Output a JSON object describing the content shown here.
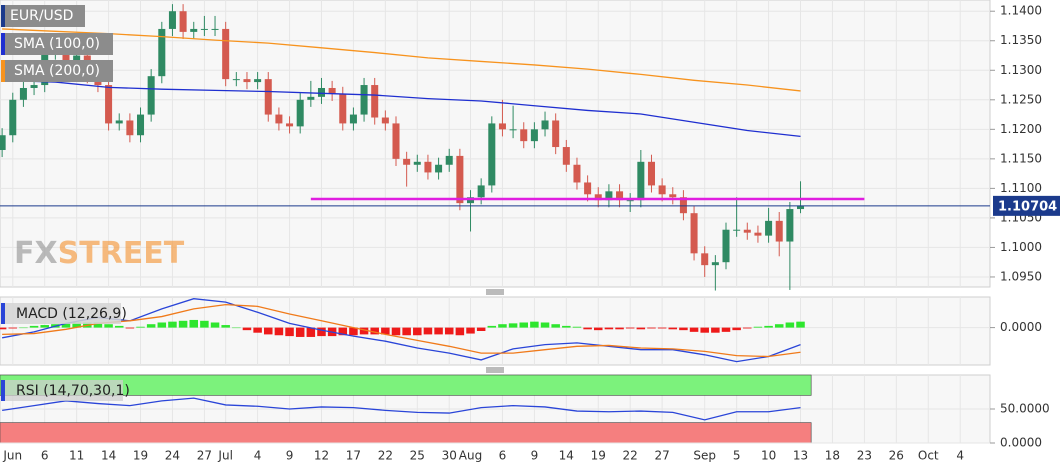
{
  "chart_data": [
    {
      "type": "candlestick",
      "title": "EUR/USD",
      "watermark": [
        "FX",
        "STREET"
      ],
      "up_color": "#2f8a63",
      "down_color": "#d45a4f",
      "x": [
        0,
        1,
        2,
        3,
        4,
        5,
        6,
        7,
        8,
        9,
        10,
        11,
        12,
        13,
        14,
        15,
        16,
        17,
        18,
        19,
        20,
        21,
        22,
        23,
        24,
        25,
        26,
        27,
        28,
        29,
        30,
        31,
        32,
        33,
        34,
        35,
        36,
        37,
        38,
        39,
        40,
        41,
        42,
        43,
        44,
        45,
        46,
        47,
        48,
        49,
        50,
        51,
        52,
        53,
        54,
        55,
        56,
        57,
        58,
        59,
        60,
        61,
        62,
        63,
        64,
        65,
        66,
        67,
        68,
        69,
        70,
        71,
        72,
        73,
        74,
        75
      ],
      "open": [
        1.1165,
        1.119,
        1.125,
        1.127,
        1.1275,
        1.133,
        1.1335,
        1.131,
        1.1325,
        1.129,
        1.1275,
        1.121,
        1.1215,
        1.119,
        1.1225,
        1.129,
        1.137,
        1.14,
        1.1365,
        1.137,
        1.137,
        1.137,
        1.1285,
        1.1285,
        1.128,
        1.1285,
        1.1225,
        1.121,
        1.1205,
        1.125,
        1.1255,
        1.127,
        1.126,
        1.121,
        1.1225,
        1.1275,
        1.122,
        1.121,
        1.115,
        1.114,
        1.1145,
        1.1127,
        1.114,
        1.1155,
        1.1075,
        1.1085,
        1.1105,
        1.121,
        1.12,
        1.12,
        1.118,
        1.12,
        1.1215,
        1.117,
        1.114,
        1.111,
        1.109,
        1.108,
        1.1095,
        1.108,
        1.108,
        1.1145,
        1.1105,
        1.109,
        1.1085,
        1.1058,
        1.099,
        1.097,
        1.0975,
        1.103,
        1.103,
        1.1025,
        1.102,
        1.1045,
        1.101,
        1.1065
      ],
      "high": [
        1.1202,
        1.1262,
        1.1282,
        1.1287,
        1.1342,
        1.1347,
        1.1347,
        1.1337,
        1.1337,
        1.1302,
        1.1287,
        1.1227,
        1.1227,
        1.1237,
        1.1302,
        1.1382,
        1.1412,
        1.1412,
        1.1382,
        1.1392,
        1.1392,
        1.1382,
        1.1297,
        1.1297,
        1.1297,
        1.1297,
        1.1237,
        1.1222,
        1.1262,
        1.1282,
        1.1287,
        1.1282,
        1.1272,
        1.1237,
        1.1287,
        1.1287,
        1.1232,
        1.1222,
        1.1162,
        1.1157,
        1.1157,
        1.1152,
        1.1167,
        1.1167,
        1.1097,
        1.1117,
        1.1222,
        1.125,
        1.124,
        1.1212,
        1.1212,
        1.123,
        1.1227,
        1.1182,
        1.1152,
        1.1122,
        1.1102,
        1.1107,
        1.1107,
        1.1092,
        1.1165,
        1.1157,
        1.1117,
        1.1102,
        1.1097,
        1.107,
        1.1002,
        1.0987,
        1.1042,
        1.1085,
        1.1042,
        1.1037,
        1.1067,
        1.106,
        1.1077,
        1.1112
      ],
      "low": [
        1.1153,
        1.1178,
        1.1238,
        1.1258,
        1.1263,
        1.1318,
        1.1298,
        1.1298,
        1.1278,
        1.1263,
        1.1198,
        1.1198,
        1.1178,
        1.1178,
        1.1213,
        1.1278,
        1.1358,
        1.1353,
        1.1353,
        1.1358,
        1.1358,
        1.1273,
        1.1273,
        1.1268,
        1.1268,
        1.1213,
        1.1198,
        1.1193,
        1.1193,
        1.1238,
        1.1243,
        1.1248,
        1.1198,
        1.1198,
        1.1213,
        1.1208,
        1.1198,
        1.1138,
        1.1103,
        1.1128,
        1.1115,
        1.1115,
        1.1128,
        1.1063,
        1.1027,
        1.1073,
        1.1093,
        1.1188,
        1.1185,
        1.1168,
        1.1168,
        1.1188,
        1.1158,
        1.1128,
        1.1098,
        1.1078,
        1.1068,
        1.1068,
        1.1068,
        1.106,
        1.1068,
        1.1093,
        1.1078,
        1.1073,
        1.1046,
        1.0978,
        1.095,
        1.0927,
        1.0963,
        1.1018,
        1.1013,
        1.1008,
        1.1008,
        1.0985,
        1.0928,
        1.1058
      ],
      "close": [
        1.119,
        1.125,
        1.127,
        1.1275,
        1.133,
        1.1335,
        1.131,
        1.1325,
        1.129,
        1.1275,
        1.121,
        1.1215,
        1.119,
        1.1225,
        1.129,
        1.137,
        1.14,
        1.1365,
        1.137,
        1.137,
        1.137,
        1.1285,
        1.1285,
        1.128,
        1.1285,
        1.1225,
        1.121,
        1.1205,
        1.125,
        1.1255,
        1.127,
        1.126,
        1.121,
        1.1225,
        1.1275,
        1.122,
        1.121,
        1.115,
        1.114,
        1.1145,
        1.1127,
        1.114,
        1.1155,
        1.1075,
        1.1085,
        1.1105,
        1.121,
        1.12,
        1.12,
        1.118,
        1.12,
        1.1215,
        1.117,
        1.114,
        1.111,
        1.109,
        1.108,
        1.1095,
        1.108,
        1.108,
        1.1145,
        1.1105,
        1.109,
        1.1085,
        1.1058,
        1.099,
        1.097,
        1.0975,
        1.103,
        1.103,
        1.1025,
        1.102,
        1.1045,
        1.101,
        1.1065,
        1.107
      ],
      "series": [
        {
          "name": "SMA (100,0)",
          "color": "#1f2fd0",
          "x": [
            0,
            5,
            10,
            15,
            20,
            25,
            30,
            35,
            40,
            45,
            50,
            55,
            60,
            65,
            70,
            75
          ],
          "values": [
            1.1283,
            1.128,
            1.1271,
            1.1268,
            1.1266,
            1.1264,
            1.1261,
            1.1258,
            1.1252,
            1.1248,
            1.124,
            1.1232,
            1.1226,
            1.1212,
            1.1198,
            1.1188
          ]
        },
        {
          "name": "SMA (200,0)",
          "color": "#f7931e",
          "x": [
            0,
            5,
            10,
            15,
            20,
            25,
            30,
            35,
            40,
            45,
            50,
            55,
            60,
            65,
            70,
            75
          ],
          "values": [
            1.137,
            1.1366,
            1.1362,
            1.1357,
            1.1351,
            1.1346,
            1.1338,
            1.133,
            1.1321,
            1.1315,
            1.1309,
            1.1302,
            1.1293,
            1.1283,
            1.1275,
            1.1265
          ]
        }
      ],
      "hlines": [
        {
          "value": 1.1082,
          "x": [
            29,
            81
          ],
          "color": "#e01ee0"
        }
      ],
      "last_price": 1.10704,
      "last_price_color": "#1b3a8c",
      "xlim": [
        -0.2,
        92.8
      ],
      "xticks": [
        {
          "value": 1,
          "label": "Jun"
        },
        {
          "value": 4,
          "label": "6"
        },
        {
          "value": 7,
          "label": "11"
        },
        {
          "value": 10,
          "label": "14"
        },
        {
          "value": 13,
          "label": "19"
        },
        {
          "value": 16,
          "label": "24"
        },
        {
          "value": 19,
          "label": "27"
        },
        {
          "value": 21,
          "label": "Jul"
        },
        {
          "value": 24,
          "label": "4"
        },
        {
          "value": 27,
          "label": "9"
        },
        {
          "value": 30,
          "label": "12"
        },
        {
          "value": 33,
          "label": "17"
        },
        {
          "value": 36,
          "label": "22"
        },
        {
          "value": 39,
          "label": "25"
        },
        {
          "value": 42,
          "label": "30"
        },
        {
          "value": 44,
          "label": "Aug"
        },
        {
          "value": 47,
          "label": "6"
        },
        {
          "value": 50,
          "label": "9"
        },
        {
          "value": 53,
          "label": "14"
        },
        {
          "value": 56,
          "label": "19"
        },
        {
          "value": 59,
          "label": "22"
        },
        {
          "value": 62,
          "label": "27"
        },
        {
          "value": 66,
          "label": "Sep"
        },
        {
          "value": 69,
          "label": "5"
        },
        {
          "value": 72,
          "label": "10"
        },
        {
          "value": 75,
          "label": "13"
        },
        {
          "value": 78,
          "label": "18"
        },
        {
          "value": 81,
          "label": "23"
        },
        {
          "value": 84,
          "label": "26"
        },
        {
          "value": 87,
          "label": "Oct"
        },
        {
          "value": 90,
          "label": "4"
        }
      ],
      "ylim": [
        1.0933,
        1.1419
      ],
      "yticks": [
        {
          "value": 1.14,
          "label": "1.1400"
        },
        {
          "value": 1.135,
          "label": "1.1350"
        },
        {
          "value": 1.13,
          "label": "1.1300"
        },
        {
          "value": 1.125,
          "label": "1.1250"
        },
        {
          "value": 1.12,
          "label": "1.1200"
        },
        {
          "value": 1.115,
          "label": "1.1150"
        },
        {
          "value": 1.11,
          "label": "1.1100"
        },
        {
          "value": 1.105,
          "label": "1.1050"
        },
        {
          "value": 1.1,
          "label": "1.1000"
        },
        {
          "value": 1.095,
          "label": "1.0950"
        }
      ],
      "grid": true
    },
    {
      "type": "macd",
      "title": "MACD (12,26,9)",
      "series": [
        {
          "color": "#2a45d8",
          "x": [
            0,
            3,
            6,
            9,
            12,
            15,
            18,
            21,
            24,
            27,
            30,
            33,
            36,
            39,
            42,
            45,
            48,
            51,
            54,
            57,
            60,
            63,
            66,
            69,
            72,
            75
          ],
          "values": [
            -0.0012,
            -0.0005,
            0.0005,
            0.0012,
            0.0008,
            0.0022,
            0.0034,
            0.003,
            0.0018,
            0.0005,
            -0.0003,
            -0.001,
            -0.0016,
            -0.0024,
            -0.003,
            -0.0038,
            -0.0025,
            -0.002,
            -0.0018,
            -0.0022,
            -0.0026,
            -0.0026,
            -0.0032,
            -0.004,
            -0.0034,
            -0.002
          ]
        },
        {
          "color": "#f07a1a",
          "x": [
            0,
            3,
            6,
            9,
            12,
            15,
            18,
            21,
            24,
            27,
            30,
            33,
            36,
            39,
            42,
            45,
            48,
            51,
            54,
            57,
            60,
            63,
            66,
            69,
            72,
            75
          ],
          "values": [
            -0.0008,
            -0.0007,
            -0.0002,
            0.0005,
            0.0008,
            0.0013,
            0.0022,
            0.0027,
            0.0025,
            0.0016,
            0.0008,
            0.0,
            -0.0008,
            -0.0015,
            -0.0022,
            -0.003,
            -0.003,
            -0.0026,
            -0.0022,
            -0.0021,
            -0.0024,
            -0.0025,
            -0.0028,
            -0.0033,
            -0.0034,
            -0.0029
          ]
        }
      ],
      "histogram": {
        "up_color": "#2ee62e",
        "down_color": "#ee1a1a",
        "values": [
          -0.0002,
          -0.0001,
          0.0,
          0.0002,
          0.0003,
          0.0004,
          0.0005,
          0.0006,
          0.0006,
          0.0006,
          0.0004,
          0.0002,
          -0.0001,
          0.0001,
          0.0004,
          0.0006,
          0.0007,
          0.0008,
          0.0009,
          0.0008,
          0.0006,
          0.0003,
          0.0,
          -0.0003,
          -0.0006,
          -0.0008,
          -0.0009,
          -0.001,
          -0.0011,
          -0.0011,
          -0.001,
          -0.001,
          -0.0009,
          -0.0009,
          -0.0008,
          -0.0008,
          -0.0008,
          -0.0009,
          -0.0009,
          -0.0009,
          -0.0008,
          -0.0008,
          -0.0008,
          -0.0009,
          -0.0007,
          -0.0004,
          0.0002,
          0.0004,
          0.0005,
          0.0006,
          0.0007,
          0.0006,
          0.0004,
          0.0002,
          0.0001,
          -0.0002,
          -0.0003,
          -0.0002,
          -0.0002,
          -0.0001,
          -0.0002,
          -0.0001,
          -0.0001,
          -0.0002,
          -0.0003,
          -0.0005,
          -0.0006,
          -0.0006,
          -0.0005,
          -0.0003,
          -0.0001,
          0.0001,
          0.0002,
          0.0004,
          0.0006,
          0.0007
        ]
      },
      "ylim": [
        -0.0044,
        0.0036
      ],
      "yticks": [
        {
          "value": 0,
          "label": "0.0000"
        }
      ]
    },
    {
      "type": "rsi",
      "title": "RSI (14,70,30,1)",
      "series": [
        {
          "color": "#2a45d8",
          "x": [
            0,
            3,
            6,
            9,
            12,
            15,
            18,
            21,
            24,
            27,
            30,
            33,
            36,
            39,
            42,
            45,
            48,
            51,
            54,
            57,
            60,
            63,
            66,
            69,
            72,
            75
          ],
          "values": [
            48,
            55,
            62,
            58,
            55,
            62,
            66,
            56,
            54,
            50,
            53,
            52,
            48,
            45,
            44,
            52,
            55,
            53,
            47,
            46,
            47,
            45,
            34,
            46,
            46,
            52
          ]
        }
      ],
      "bands": [
        {
          "range": [
            70,
            100
          ],
          "color": "#7cf27c"
        },
        {
          "range": [
            0,
            30
          ],
          "color": "#f57f7f"
        }
      ],
      "ylim": [
        0,
        100
      ],
      "yticks": [
        {
          "value": 50,
          "label": "50.0000"
        },
        {
          "value": 0,
          "label": "0.0000"
        }
      ]
    }
  ]
}
